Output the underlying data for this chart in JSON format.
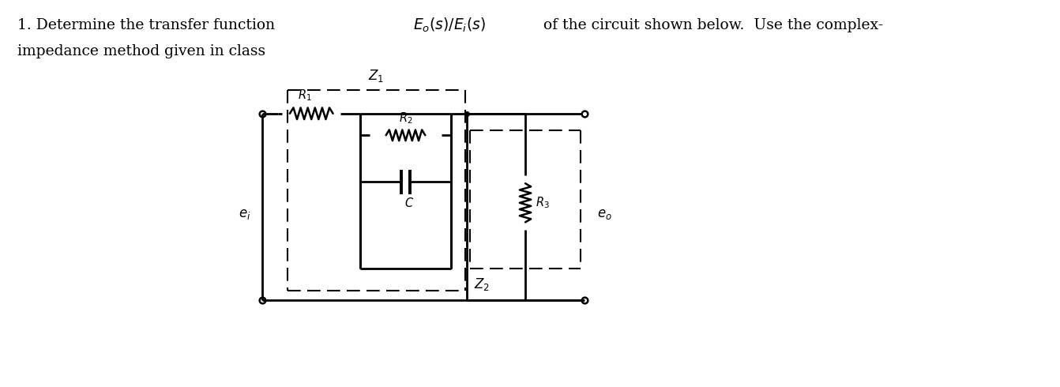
{
  "bg_color": "#ffffff",
  "text_color": "#000000",
  "circuit_color": "#000000",
  "figsize": [
    13.42,
    4.9
  ],
  "dpi": 100,
  "title_part1": "1. Determine the transfer function ",
  "title_math": "$E_o(s)/E_i(s)$",
  "title_part2": " of the circuit shown below.  Use the complex-",
  "title_line2": "impedance method given in class",
  "label_R1": "$R_1$",
  "label_R2": "$R_2$",
  "label_R3": "$R_3$",
  "label_C": "$C$",
  "label_Z1": "$Z_1$",
  "label_Z2": "$Z_2$",
  "label_ei": "$e_i$",
  "label_eo": "$e_o$"
}
